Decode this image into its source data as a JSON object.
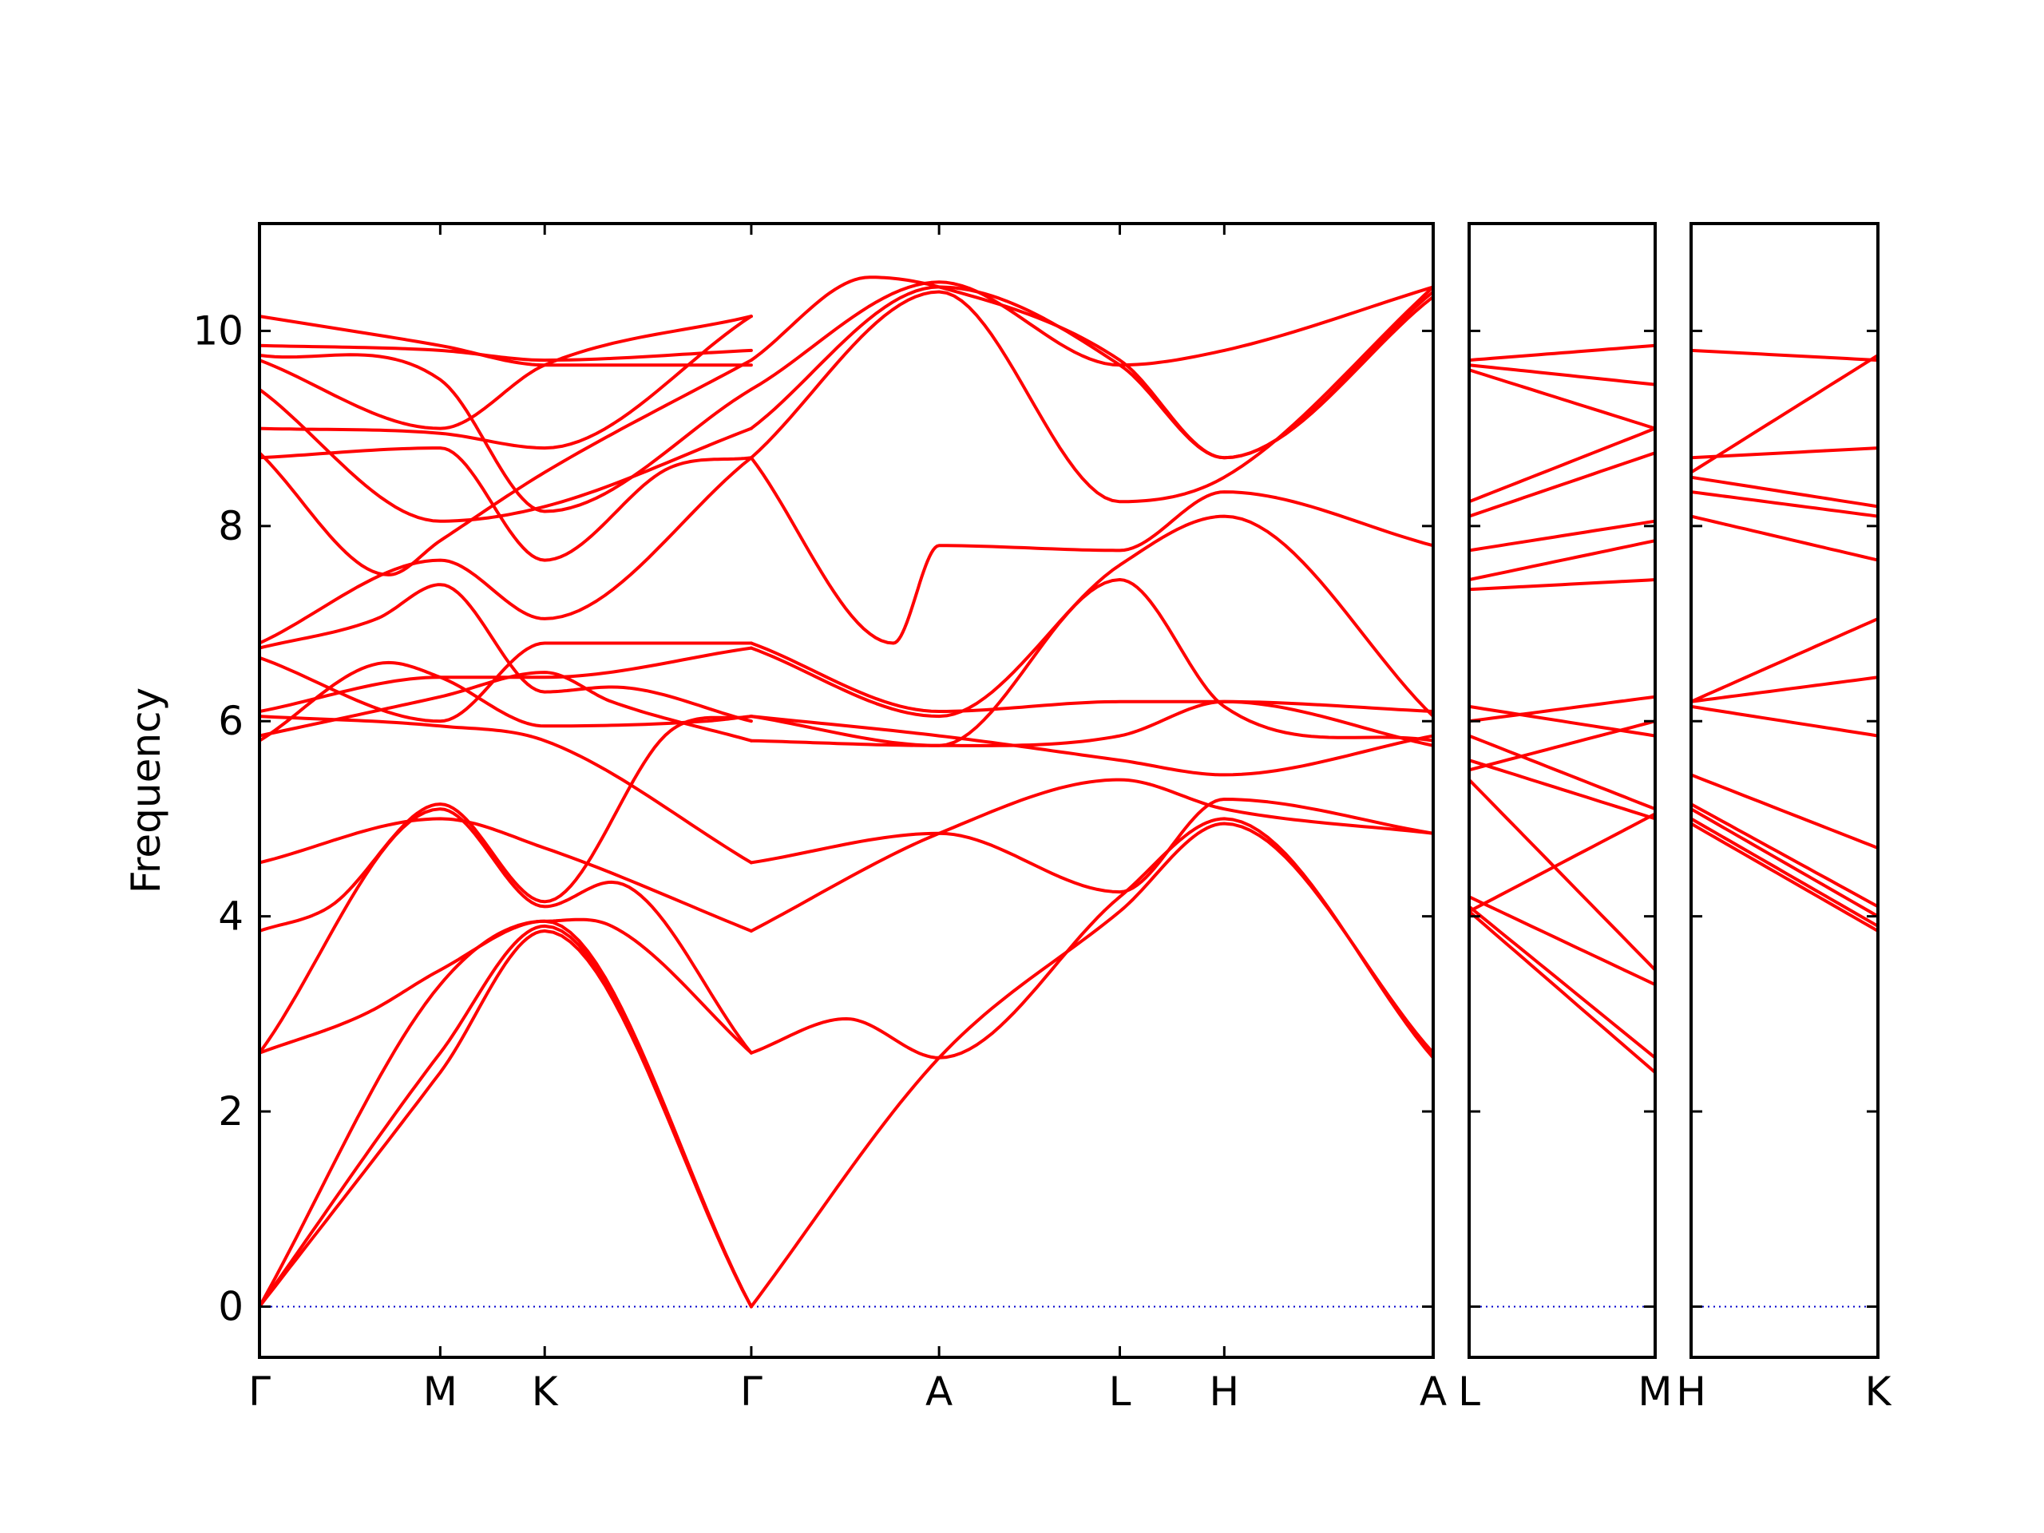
{
  "chart_data": {
    "type": "line",
    "title": "",
    "xlabel": "",
    "ylabel": "Frequency",
    "ylim": [
      -0.52,
      11.1
    ],
    "yticks": [
      0,
      2,
      4,
      6,
      8,
      10
    ],
    "grid": false,
    "line_color": "#ff0000",
    "zero_line_color": "#0000cc",
    "panels": [
      {
        "labels": [
          "Γ",
          "M",
          "K",
          "Γ",
          "A",
          "L",
          "H",
          "A"
        ],
        "x": [
          0,
          0.154,
          0.243,
          0.419,
          0.579,
          0.733,
          0.822,
          1.0
        ],
        "bands": [
          {
            "x": [
              0,
              0.154,
              0.243,
              0.419
            ],
            "y": [
              0,
              2.4,
              3.85,
              0
            ]
          },
          {
            "x": [
              0,
              0.154,
              0.243,
              0.419
            ],
            "y": [
              0,
              2.6,
              3.9,
              0
            ]
          },
          {
            "x": [
              0,
              0.154,
              0.243,
              0.419
            ],
            "y": [
              0,
              3.3,
              3.95,
              0
            ]
          },
          {
            "x": [
              0,
              0.09,
              0.154,
              0.243,
              0.3,
              0.419
            ],
            "y": [
              2.6,
              3.0,
              3.45,
              3.95,
              3.9,
              2.6
            ]
          },
          {
            "x": [
              0,
              0.154,
              0.243,
              0.3,
              0.419
            ],
            "y": [
              2.6,
              5.1,
              4.1,
              4.35,
              2.6
            ]
          },
          {
            "x": [
              0,
              0.06,
              0.154,
              0.243,
              0.35,
              0.419
            ],
            "y": [
              3.85,
              4.1,
              5.15,
              4.15,
              5.9,
              6.05
            ]
          },
          {
            "x": [
              0,
              0.154,
              0.243,
              0.419
            ],
            "y": [
              4.55,
              5.0,
              4.7,
              3.85
            ]
          },
          {
            "x": [
              0,
              0.11,
              0.154,
              0.243,
              0.38,
              0.419
            ],
            "y": [
              5.8,
              6.6,
              6.45,
              5.95,
              6.0,
              6.05
            ]
          },
          {
            "x": [
              0,
              0.154,
              0.243,
              0.3,
              0.419
            ],
            "y": [
              5.85,
              6.25,
              6.5,
              6.2,
              5.8
            ]
          },
          {
            "x": [
              0,
              0.154,
              0.243,
              0.419
            ],
            "y": [
              6.05,
              5.95,
              5.8,
              4.55
            ]
          },
          {
            "x": [
              0,
              0.154,
              0.243,
              0.419
            ],
            "y": [
              6.1,
              6.45,
              6.45,
              6.75
            ]
          },
          {
            "x": [
              0,
              0.154,
              0.243,
              0.419
            ],
            "y": [
              6.65,
              6.0,
              6.8,
              6.8
            ]
          },
          {
            "x": [
              0,
              0.1,
              0.154,
              0.243,
              0.3,
              0.419
            ],
            "y": [
              6.75,
              7.05,
              7.4,
              6.3,
              6.35,
              6.0
            ]
          },
          {
            "x": [
              0,
              0.154,
              0.243,
              0.419
            ],
            "y": [
              6.8,
              7.65,
              7.05,
              8.7
            ]
          },
          {
            "x": [
              0,
              0.154,
              0.243,
              0.35,
              0.419
            ],
            "y": [
              8.7,
              8.8,
              7.65,
              8.6,
              8.7
            ]
          },
          {
            "x": [
              0,
              0.11,
              0.154,
              0.243,
              0.419
            ],
            "y": [
              8.75,
              7.5,
              7.85,
              8.55,
              9.7
            ]
          },
          {
            "x": [
              0,
              0.154,
              0.243,
              0.419
            ],
            "y": [
              9.0,
              8.95,
              8.8,
              10.15
            ]
          },
          {
            "x": [
              0,
              0.154,
              0.243,
              0.419
            ],
            "y": [
              9.4,
              8.05,
              8.2,
              9.0
            ]
          },
          {
            "x": [
              0,
              0.154,
              0.243,
              0.419
            ],
            "y": [
              9.7,
              9.0,
              9.65,
              10.15
            ]
          },
          {
            "x": [
              0,
              0.154,
              0.243,
              0.419
            ],
            "y": [
              9.75,
              9.5,
              8.15,
              9.4
            ]
          },
          {
            "x": [
              0,
              0.154,
              0.243,
              0.419
            ],
            "y": [
              9.85,
              9.8,
              9.7,
              9.8
            ]
          },
          {
            "x": [
              0,
              0.154,
              0.243,
              0.419
            ],
            "y": [
              10.15,
              9.85,
              9.65,
              9.65
            ]
          },
          {
            "x": [
              0.419,
              0.579,
              0.733,
              0.822,
              1.0
            ],
            "y": [
              0,
              2.55,
              4.05,
              4.95,
              2.6
            ]
          },
          {
            "x": [
              0.419,
              0.5,
              0.579,
              0.733,
              0.822,
              1.0
            ],
            "y": [
              2.6,
              2.95,
              2.55,
              4.2,
              5.0,
              2.55
            ]
          },
          {
            "x": [
              0.419,
              0.579,
              0.733,
              0.822,
              1.0
            ],
            "y": [
              3.85,
              4.85,
              5.4,
              5.1,
              4.85
            ]
          },
          {
            "x": [
              0.419,
              0.579,
              0.733,
              0.822,
              1.0
            ],
            "y": [
              4.55,
              4.85,
              4.25,
              5.2,
              4.85
            ]
          },
          {
            "x": [
              0.419,
              0.579,
              0.733,
              0.822,
              1.0
            ],
            "y": [
              5.8,
              5.75,
              7.45,
              6.15,
              5.8
            ]
          },
          {
            "x": [
              0.419,
              0.579,
              0.733,
              0.822,
              1.0
            ],
            "y": [
              6.05,
              5.75,
              5.85,
              6.2,
              5.75
            ]
          },
          {
            "x": [
              0.419,
              0.579,
              0.733,
              0.822,
              1.0
            ],
            "y": [
              6.05,
              5.85,
              5.6,
              5.45,
              5.85
            ]
          },
          {
            "x": [
              0.419,
              0.579,
              0.733,
              0.822,
              1.0
            ],
            "y": [
              6.75,
              6.05,
              7.6,
              8.1,
              6.05
            ]
          },
          {
            "x": [
              0.419,
              0.579,
              0.733,
              0.822,
              1.0
            ],
            "y": [
              6.8,
              6.1,
              6.2,
              6.2,
              6.1
            ]
          },
          {
            "x": [
              0.419,
              0.54,
              0.579,
              0.733,
              0.822,
              1.0
            ],
            "y": [
              8.7,
              6.8,
              7.8,
              7.75,
              8.35,
              7.8
            ]
          },
          {
            "x": [
              0.419,
              0.579,
              0.733,
              0.822,
              1.0
            ],
            "y": [
              8.7,
              10.4,
              8.25,
              8.5,
              10.45
            ]
          },
          {
            "x": [
              0.419,
              0.579,
              0.733,
              0.822,
              1.0
            ],
            "y": [
              9.0,
              10.45,
              9.65,
              8.7,
              10.4
            ]
          },
          {
            "x": [
              0.419,
              0.579,
              0.733,
              0.822,
              1.0
            ],
            "y": [
              9.4,
              10.5,
              9.65,
              9.8,
              10.45
            ]
          },
          {
            "x": [
              0.419,
              0.52,
              0.579,
              0.733,
              0.822,
              1.0
            ],
            "y": [
              9.7,
              10.55,
              10.45,
              9.7,
              8.7,
              10.35
            ]
          }
        ]
      },
      {
        "labels": [
          "L",
          "M"
        ],
        "x": [
          0,
          1.0
        ],
        "bands": [
          {
            "x": [
              0,
              1
            ],
            "y": [
              4.05,
              2.4
            ]
          },
          {
            "x": [
              0,
              1
            ],
            "y": [
              4.1,
              2.55
            ]
          },
          {
            "x": [
              0,
              1
            ],
            "y": [
              4.2,
              3.3
            ]
          },
          {
            "x": [
              0,
              1
            ],
            "y": [
              5.4,
              3.45
            ]
          },
          {
            "x": [
              0,
              1
            ],
            "y": [
              5.6,
              5.0
            ]
          },
          {
            "x": [
              0,
              1
            ],
            "y": [
              5.85,
              5.1
            ]
          },
          {
            "x": [
              0,
              1
            ],
            "y": [
              6.15,
              5.85
            ]
          },
          {
            "x": [
              0,
              1
            ],
            "y": [
              5.5,
              6.0
            ]
          },
          {
            "x": [
              0,
              1
            ],
            "y": [
              6.0,
              6.25
            ]
          },
          {
            "x": [
              0,
              1
            ],
            "y": [
              4.05,
              5.05
            ]
          },
          {
            "x": [
              0,
              1
            ],
            "y": [
              7.35,
              7.45
            ]
          },
          {
            "x": [
              0,
              1
            ],
            "y": [
              7.45,
              7.85
            ]
          },
          {
            "x": [
              0,
              1
            ],
            "y": [
              7.75,
              8.05
            ]
          },
          {
            "x": [
              0,
              1
            ],
            "y": [
              8.25,
              9.0
            ]
          },
          {
            "x": [
              0,
              1
            ],
            "y": [
              9.6,
              9.0
            ]
          },
          {
            "x": [
              0,
              1
            ],
            "y": [
              9.65,
              9.45
            ]
          },
          {
            "x": [
              0,
              1
            ],
            "y": [
              9.7,
              9.85
            ]
          },
          {
            "x": [
              0,
              1
            ],
            "y": [
              8.1,
              8.75
            ]
          }
        ]
      },
      {
        "labels": [
          "H",
          "K"
        ],
        "x": [
          0,
          1.0
        ],
        "bands": [
          {
            "x": [
              0,
              1
            ],
            "y": [
              4.95,
              3.85
            ]
          },
          {
            "x": [
              0,
              1
            ],
            "y": [
              5.0,
              3.9
            ]
          },
          {
            "x": [
              0,
              1
            ],
            "y": [
              5.1,
              4.0
            ]
          },
          {
            "x": [
              0,
              1
            ],
            "y": [
              5.15,
              4.1
            ]
          },
          {
            "x": [
              0,
              1
            ],
            "y": [
              5.45,
              4.7
            ]
          },
          {
            "x": [
              0,
              1
            ],
            "y": [
              6.15,
              5.85
            ]
          },
          {
            "x": [
              0,
              1
            ],
            "y": [
              6.2,
              6.45
            ]
          },
          {
            "x": [
              0,
              1
            ],
            "y": [
              6.2,
              7.05
            ]
          },
          {
            "x": [
              0,
              1
            ],
            "y": [
              8.1,
              7.65
            ]
          },
          {
            "x": [
              0,
              1
            ],
            "y": [
              8.35,
              8.1
            ]
          },
          {
            "x": [
              0,
              1
            ],
            "y": [
              8.5,
              8.2
            ]
          },
          {
            "x": [
              0,
              1
            ],
            "y": [
              8.7,
              8.8
            ]
          },
          {
            "x": [
              0,
              1
            ],
            "y": [
              9.8,
              9.7
            ]
          },
          {
            "x": [
              0,
              1
            ],
            "y": [
              8.55,
              9.75
            ]
          }
        ]
      }
    ]
  }
}
